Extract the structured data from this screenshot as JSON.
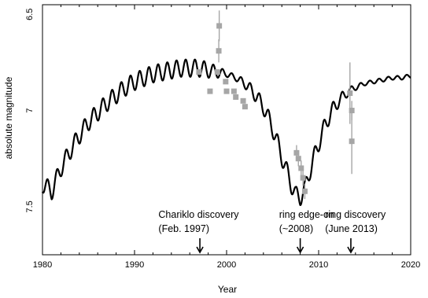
{
  "chart_data": {
    "type": "line",
    "title": "",
    "xlabel": "Year",
    "ylabel": "absolute magnitude",
    "xlim": [
      1980,
      2020
    ],
    "ylim": [
      7.75,
      6.45
    ],
    "y_inverted": true,
    "x_ticks": [
      1980,
      1990,
      2000,
      2010,
      2020
    ],
    "x_tick_labels": [
      "1980",
      "1990",
      "2000",
      "2010",
      "2020"
    ],
    "y_ticks": [
      6.5,
      7,
      7.5
    ],
    "y_tick_labels": [
      "6.5",
      "7",
      "7.5"
    ],
    "grid": false,
    "series": [
      {
        "kind": "model-curve",
        "color": "#000000",
        "oscillation_period_years": 1.0,
        "x": [
          1980,
          1981,
          1982,
          1983,
          1984,
          1985,
          1986,
          1987,
          1988,
          1989,
          1990,
          1991,
          1992,
          1993,
          1994,
          1995,
          1996,
          1997,
          1998,
          1999,
          2000,
          2001,
          2002,
          2003,
          2004,
          2005,
          2006,
          2007,
          2007.5,
          2008,
          2008.5,
          2009,
          2010,
          2011,
          2012,
          2013,
          2014,
          2015,
          2016,
          2017,
          2018,
          2019,
          2020
        ],
        "y": [
          7.38,
          7.42,
          7.3,
          7.21,
          7.13,
          7.06,
          7.01,
          6.96,
          6.92,
          6.88,
          6.85,
          6.83,
          6.81,
          6.8,
          6.79,
          6.78,
          6.78,
          6.78,
          6.79,
          6.8,
          6.81,
          6.83,
          6.86,
          6.91,
          6.98,
          7.09,
          7.24,
          7.38,
          7.44,
          7.45,
          7.41,
          7.32,
          7.17,
          7.04,
          6.96,
          6.91,
          6.88,
          6.86,
          6.85,
          6.84,
          6.83,
          6.83,
          6.82
        ],
        "oscillation_amplitude": [
          0.045,
          0.045,
          0.045,
          0.045,
          0.045,
          0.045,
          0.045,
          0.045,
          0.045,
          0.045,
          0.045,
          0.045,
          0.045,
          0.045,
          0.045,
          0.045,
          0.045,
          0.045,
          0.04,
          0.03,
          0.015,
          0.015,
          0.025,
          0.035,
          0.04,
          0.045,
          0.045,
          0.045,
          0.045,
          0.045,
          0.045,
          0.045,
          0.045,
          0.045,
          0.035,
          0.025,
          0.015,
          0.01,
          0.01,
          0.01,
          0.01,
          0.01,
          0.01
        ]
      },
      {
        "kind": "observations",
        "color": "#a6a6a6",
        "points": [
          {
            "x": 1997.0,
            "y": 6.8,
            "err": 0.0
          },
          {
            "x": 1998.2,
            "y": 6.9,
            "err": 0.0
          },
          {
            "x": 1999.0,
            "y": 6.8,
            "err": 0.0
          },
          {
            "x": 1999.2,
            "y": 6.56,
            "err": 0.08
          },
          {
            "x": 1999.15,
            "y": 6.69,
            "err": 0.06
          },
          {
            "x": 1999.9,
            "y": 6.85,
            "err": 0.0
          },
          {
            "x": 2000.0,
            "y": 6.9,
            "err": 0.0
          },
          {
            "x": 2000.8,
            "y": 6.9,
            "err": 0.0
          },
          {
            "x": 2001.0,
            "y": 6.93,
            "err": 0.0
          },
          {
            "x": 2001.8,
            "y": 6.95,
            "err": 0.0
          },
          {
            "x": 2002.0,
            "y": 6.98,
            "err": 0.0
          },
          {
            "x": 2007.6,
            "y": 7.22,
            "err": 0.04
          },
          {
            "x": 2007.8,
            "y": 7.25,
            "err": 0.04
          },
          {
            "x": 2008.1,
            "y": 7.3,
            "err": 0.04
          },
          {
            "x": 2008.3,
            "y": 7.35,
            "err": 0.04
          },
          {
            "x": 2008.5,
            "y": 7.42,
            "err": 0.04
          },
          {
            "x": 2013.4,
            "y": 6.91,
            "err": 0.16
          },
          {
            "x": 2013.6,
            "y": 7.0,
            "err": 0.05
          },
          {
            "x": 2013.6,
            "y": 7.16,
            "err": 0.17
          }
        ]
      }
    ],
    "annotations": [
      {
        "lines": [
          "Chariklo discovery",
          "(Feb. 1997)"
        ],
        "x": 1997.1,
        "text_anchor_year": 1992.6
      },
      {
        "lines": [
          "ring edge-on",
          "(~2008)"
        ],
        "x": 2008.0,
        "text_anchor_year": 2005.7
      },
      {
        "lines": [
          "ring discovery",
          "(June 2013)"
        ],
        "x": 2013.5,
        "text_anchor_year": 2010.7
      }
    ]
  }
}
